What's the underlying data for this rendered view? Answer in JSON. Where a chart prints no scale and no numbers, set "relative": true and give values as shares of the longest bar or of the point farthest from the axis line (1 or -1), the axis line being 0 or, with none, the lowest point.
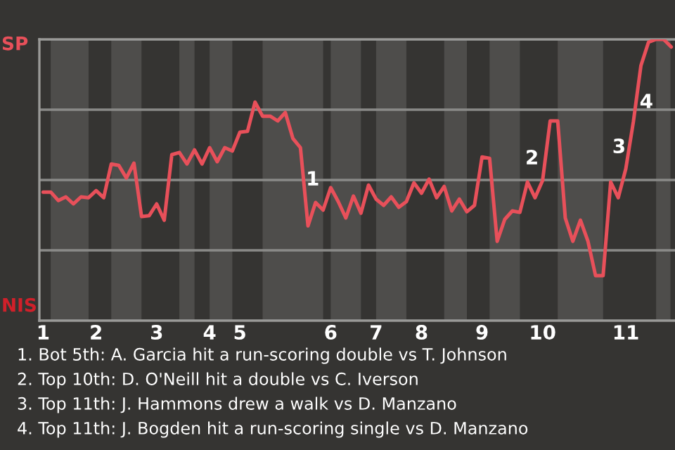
{
  "chart_data": {
    "type": "line",
    "relative": true,
    "categories": [
      "1",
      null,
      null,
      null,
      null,
      null,
      null,
      "2",
      null,
      null,
      null,
      null,
      null,
      null,
      null,
      "3",
      null,
      null,
      null,
      null,
      null,
      null,
      "4",
      null,
      null,
      null,
      "5",
      null,
      null,
      null,
      null,
      null,
      null,
      null,
      null,
      null,
      null,
      null,
      "6",
      null,
      null,
      null,
      null,
      null,
      "7",
      null,
      null,
      null,
      null,
      null,
      "8",
      null,
      null,
      null,
      null,
      null,
      null,
      null,
      "9",
      null,
      null,
      null,
      null,
      null,
      null,
      null,
      "10",
      null,
      null,
      null,
      null,
      null,
      null,
      null,
      null,
      null,
      null,
      "11",
      null,
      null,
      null,
      null,
      null,
      null
    ],
    "series": [
      {
        "color": "#e8505a",
        "values": [
          0.457,
          0.457,
          0.427,
          0.44,
          0.415,
          0.44,
          0.437,
          0.462,
          0.437,
          0.557,
          0.552,
          0.507,
          0.56,
          0.37,
          0.373,
          0.415,
          0.357,
          0.59,
          0.598,
          0.557,
          0.607,
          0.557,
          0.615,
          0.565,
          0.615,
          0.603,
          0.67,
          0.673,
          0.777,
          0.727,
          0.727,
          0.71,
          0.74,
          0.648,
          0.615,
          0.337,
          0.42,
          0.393,
          0.473,
          0.423,
          0.365,
          0.443,
          0.382,
          0.482,
          0.432,
          0.41,
          0.44,
          0.403,
          0.423,
          0.49,
          0.453,
          0.503,
          0.437,
          0.477,
          0.39,
          0.432,
          0.387,
          0.41,
          0.582,
          0.577,
          0.282,
          0.36,
          0.39,
          0.385,
          0.493,
          0.437,
          0.498,
          0.71,
          0.71,
          0.365,
          0.282,
          0.357,
          0.282,
          0.16,
          0.16,
          0.493,
          0.437,
          0.54,
          0.707,
          0.907,
          0.99,
          1.0,
          1.0,
          0.973
        ]
      }
    ],
    "grid": "y",
    "marker": "none",
    "line_style": "solid",
    "annotations": [
      "1",
      "2",
      "3",
      "4",
      "SP",
      "NIS",
      "1. Bot 5th: A. Garcia hit a run-scoring double vs T. Johnson",
      "2. Top 10th: D. O'Neill hit a double vs C. Iverson",
      "3. Top 11th: J. Hammons drew a walk vs D. Manzano",
      "4. Top 11th: J. Bogden hit a run-scoring single vs D. Manzano"
    ]
  }
}
